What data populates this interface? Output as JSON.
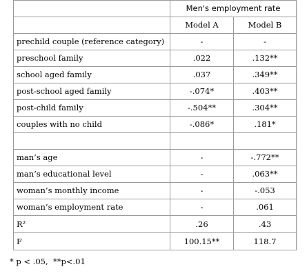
{
  "table": {
    "header_title": "Men's employment rate",
    "model_a": "Model A",
    "model_b": "Model B",
    "rows": [
      {
        "label": "prechild couple (reference category)",
        "a": "-",
        "b": "-"
      },
      {
        "label": "preschool family",
        "a": ".022",
        "b": ".132**"
      },
      {
        "label": "school aged family",
        "a": ".037",
        "b": ".349**"
      },
      {
        "label": "post-school aged family",
        "a": "-.074*",
        "b": ".403**"
      },
      {
        "label": "post-child family",
        "a": "-.504**",
        "b": ".304**"
      },
      {
        "label": "couples with no child",
        "a": "-.086*",
        "b": ".181*"
      },
      {
        "label": "man’s age",
        "a": "-",
        "b": "-.772**"
      },
      {
        "label": "man’s educational level",
        "a": "-",
        "b": ".063**"
      },
      {
        "label": "woman’s monthly income",
        "a": "-",
        "b": "-.053"
      },
      {
        "label": "woman’s employment rate",
        "a": "-",
        "b": ".061"
      },
      {
        "label": "R²",
        "a": ".26",
        "b": ".43"
      },
      {
        "label": "F",
        "a": "100.15**",
        "b": "118.7"
      }
    ]
  },
  "footnote": "* p < .05,  **p<.01"
}
